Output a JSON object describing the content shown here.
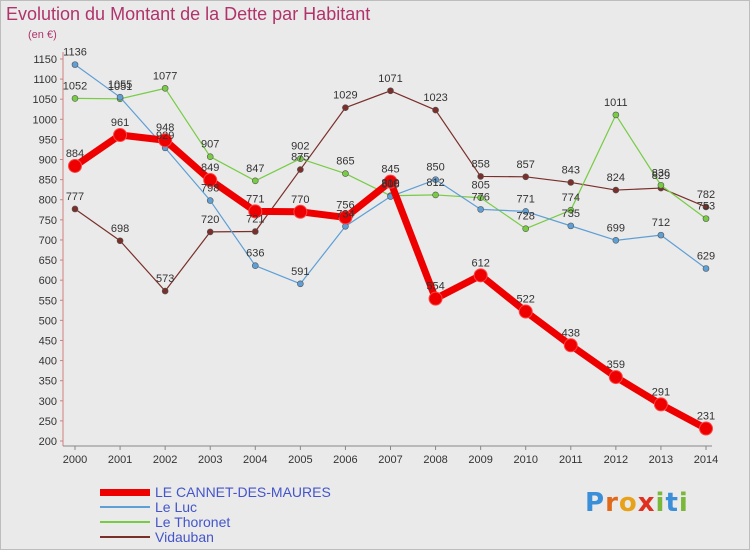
{
  "title": "Evolution du Montant de la Dette par Habitant",
  "unit": "(en €)",
  "logo": "Proxiti",
  "chart_data": {
    "type": "line",
    "title": "Evolution du Montant de la Dette par Habitant",
    "ylabel": "(en €)",
    "x": [
      2000,
      2001,
      2002,
      2003,
      2004,
      2005,
      2006,
      2007,
      2008,
      2009,
      2010,
      2011,
      2012,
      2013,
      2014
    ],
    "ylim": [
      200,
      1150
    ],
    "ytick_step": 50,
    "grid": false,
    "legend_position": "bottom-left",
    "series": [
      {
        "name": "LE CANNET-DES-MAURES",
        "color": "#ee0000",
        "width": 7,
        "values": [
          884,
          961,
          948,
          849,
          771,
          770,
          756,
          845,
          554,
          612,
          522,
          438,
          359,
          291,
          231
        ]
      },
      {
        "name": "Le Luc",
        "color": "#5e9fd6",
        "width": 1.2,
        "values": [
          1136,
          1055,
          929,
          798,
          636,
          591,
          734,
          808,
          850,
          776,
          771,
          735,
          699,
          712,
          629
        ]
      },
      {
        "name": "Le Thoronet",
        "color": "#77cc44",
        "width": 1.2,
        "values": [
          1052,
          1051,
          1077,
          907,
          847,
          902,
          865,
          810,
          812,
          805,
          728,
          774,
          1011,
          836,
          753
        ]
      },
      {
        "name": "Vidauban",
        "color": "#7a2f2a",
        "width": 1.2,
        "values": [
          777,
          698,
          573,
          720,
          721,
          875,
          1029,
          1071,
          1023,
          858,
          857,
          843,
          824,
          829,
          782
        ]
      }
    ]
  }
}
